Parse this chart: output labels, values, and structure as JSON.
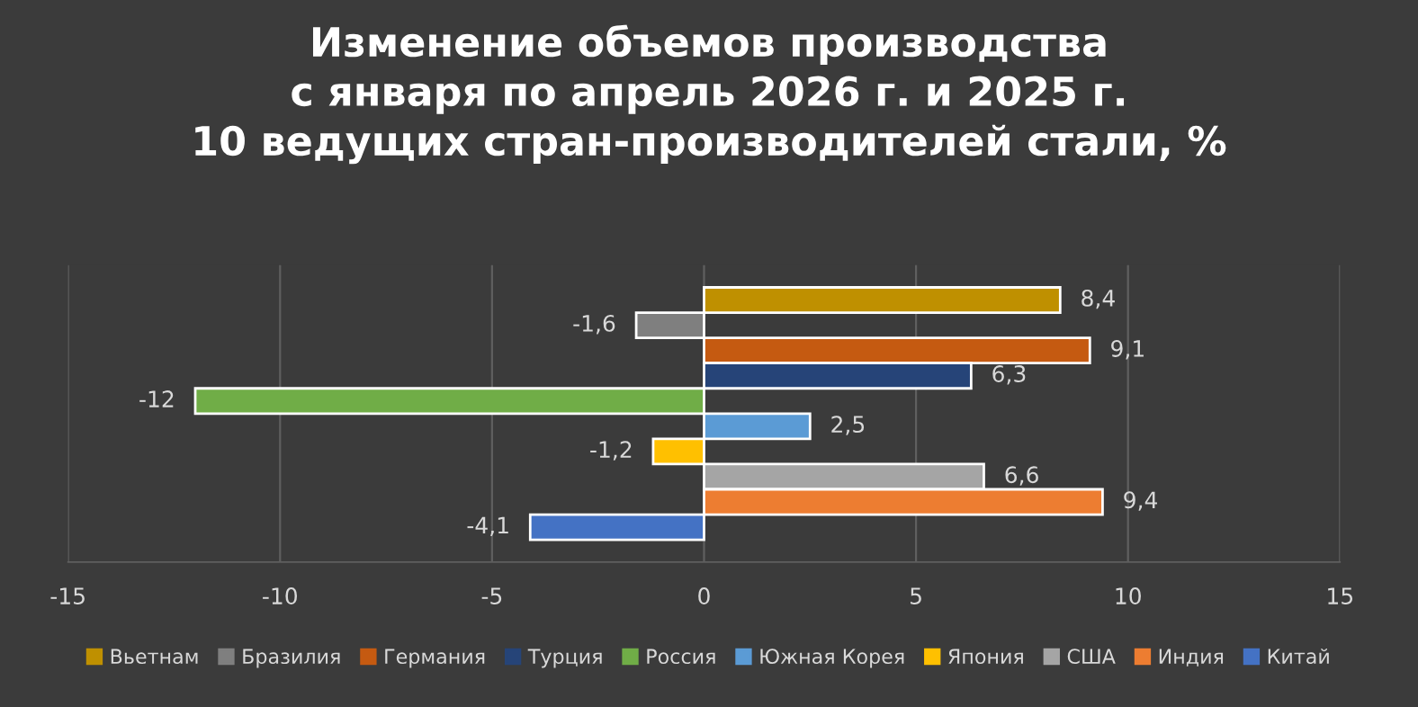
{
  "chart_data": {
    "type": "bar",
    "orientation": "horizontal",
    "title": "Изменение объемов производства\nс января по апрель 2026 г. и 2025 г.\n10 ведущих стран-производителей стали, %",
    "categories": [
      null
    ],
    "series": [
      {
        "name": "Вьетнам",
        "color": "#bf9000",
        "values": [
          8.4
        ],
        "value_labels": [
          "8,4"
        ]
      },
      {
        "name": "Бразилия",
        "color": "#7f7f7f",
        "values": [
          -1.6
        ],
        "value_labels": [
          "-1,6"
        ]
      },
      {
        "name": "Германия",
        "color": "#c55a11",
        "values": [
          9.1
        ],
        "value_labels": [
          "9,1"
        ]
      },
      {
        "name": "Турция",
        "color": "#264478",
        "values": [
          6.3
        ],
        "value_labels": [
          "6,3"
        ]
      },
      {
        "name": "Россия",
        "color": "#70ad47",
        "values": [
          -12
        ],
        "value_labels": [
          "-12"
        ]
      },
      {
        "name": "Южная Корея",
        "color": "#5b9bd5",
        "values": [
          2.5
        ],
        "value_labels": [
          "2,5"
        ]
      },
      {
        "name": "Япония",
        "color": "#ffc000",
        "values": [
          -1.2
        ],
        "value_labels": [
          "-1,2"
        ]
      },
      {
        "name": "США",
        "color": "#a5a5a5",
        "values": [
          6.6
        ],
        "value_labels": [
          "6,6"
        ]
      },
      {
        "name": "Индия",
        "color": "#ed7d31",
        "values": [
          9.4
        ],
        "value_labels": [
          "9,4"
        ]
      },
      {
        "name": "Китай",
        "color": "#4472c4",
        "values": [
          -4.1
        ],
        "value_labels": [
          "-4,1"
        ]
      }
    ],
    "xlim": [
      -15,
      15
    ],
    "xticks": [
      -15,
      -10,
      -5,
      0,
      5,
      10,
      15
    ],
    "grid": "x",
    "legend": "bottom",
    "tick_labels": "x"
  }
}
